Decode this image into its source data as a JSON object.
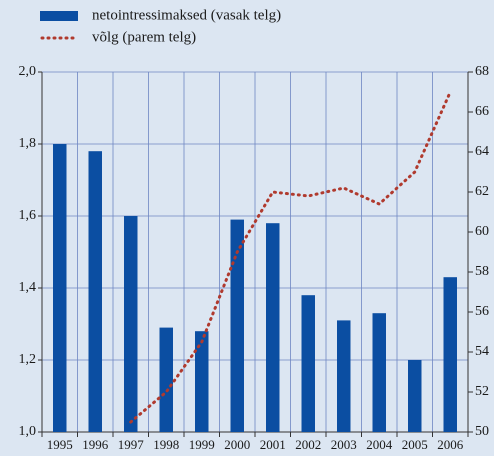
{
  "chart_data": {
    "type": "bar",
    "categories": [
      "1995",
      "1996",
      "1997",
      "1998",
      "1999",
      "2000",
      "2001",
      "2002",
      "2003",
      "2004",
      "2005",
      "2006"
    ],
    "series": [
      {
        "name": "netointressimaksed (vasak telg)",
        "type": "bar",
        "axis": "y",
        "color": "#0b4ea2",
        "values": [
          1.8,
          1.78,
          1.6,
          1.29,
          1.28,
          1.59,
          1.58,
          1.38,
          1.31,
          1.33,
          1.2,
          1.43
        ]
      },
      {
        "name": "võlg (parem telg)",
        "type": "line",
        "axis": "y2",
        "color": "#b03a2e",
        "values": [
          null,
          null,
          50.5,
          52,
          54.5,
          59,
          62,
          61.8,
          62.2,
          61.4,
          63,
          67
        ]
      }
    ],
    "ylim": [
      1.0,
      2.0
    ],
    "yticks": [
      {
        "value": 1.0,
        "label": "1,0"
      },
      {
        "value": 1.2,
        "label": "1,2"
      },
      {
        "value": 1.4,
        "label": "1,4"
      },
      {
        "value": 1.6,
        "label": "1,6"
      },
      {
        "value": 1.8,
        "label": "1,8"
      },
      {
        "value": 2.0,
        "label": "2,0"
      }
    ],
    "y2lim": [
      50,
      68
    ],
    "y2ticks": [
      50,
      52,
      54,
      56,
      58,
      60,
      62,
      64,
      66,
      68
    ],
    "grid": true,
    "legend": "top-left"
  }
}
